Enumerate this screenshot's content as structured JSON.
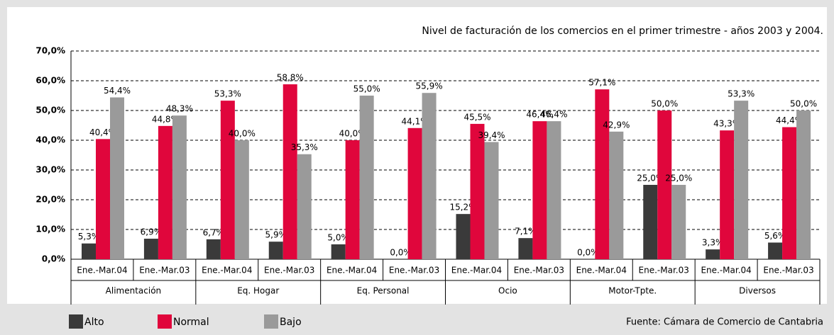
{
  "chart_data": {
    "type": "bar",
    "title": "Nivel de facturación de los comercios en el primer trimestre - años 2003 y 2004.",
    "source": "Fuente: Cámara de Comercio de Cantabria",
    "categories": [
      "Ene.-Mar.04",
      "Ene.-Mar.03",
      "Ene.-Mar.04",
      "Ene.-Mar.03",
      "Ene.-Mar.04",
      "Ene.-Mar.03",
      "Ene.-Mar.04",
      "Ene.-Mar.03",
      "Ene.-Mar.04",
      "Ene.-Mar.03",
      "Ene.-Mar.04",
      "Ene.-Mar.03"
    ],
    "groups": [
      "Alimentación",
      "Eq. Hogar",
      "Eq. Personal",
      "Ocio",
      "Motor-Tpte.",
      "Diversos"
    ],
    "series": [
      {
        "name": "Alto",
        "color": "#3a3a3a",
        "values": [
          5.3,
          6.9,
          6.7,
          5.9,
          5.0,
          0.0,
          15.2,
          7.1,
          0.0,
          25.0,
          3.3,
          5.6
        ],
        "value_labels": [
          "5,3%",
          "6,9%",
          "6,7%",
          "5,9%",
          "5,0%",
          "0,0%",
          "15,2%",
          "7,1%",
          "0,0%",
          "25,0%",
          "3,3%",
          "5,6%"
        ]
      },
      {
        "name": "Normal",
        "color": "#e0063c",
        "values": [
          40.4,
          44.8,
          53.3,
          58.8,
          40.0,
          44.1,
          45.5,
          46.4,
          57.1,
          50.0,
          43.3,
          44.4
        ],
        "value_labels": [
          "40,4%",
          "44,8%",
          "53,3%",
          "58,8%",
          "40,0%",
          "44,1%",
          "45,5%",
          "46,4%",
          "57,1%",
          "50,0%",
          "43,3%",
          "44,4%"
        ]
      },
      {
        "name": "Bajo",
        "color": "#9a9a9a",
        "values": [
          54.4,
          48.3,
          40.0,
          35.3,
          55.0,
          55.9,
          39.4,
          46.4,
          42.9,
          25.0,
          53.3,
          50.0
        ],
        "value_labels": [
          "54,4%",
          "48,3%",
          "40,0%",
          "35,3%",
          "55,0%",
          "55,9%",
          "39,4%",
          "46,4%",
          "42,9%",
          "25,0%",
          "53,3%",
          "50,0%"
        ]
      }
    ],
    "ylim": [
      0,
      70
    ],
    "yticks": [
      {
        "value": 0,
        "label": "0,0%"
      },
      {
        "value": 10,
        "label": "10,0%"
      },
      {
        "value": 20,
        "label": "20,0%"
      },
      {
        "value": 30,
        "label": "30,0%"
      },
      {
        "value": 40,
        "label": "40,0%"
      },
      {
        "value": 50,
        "label": "50,0%"
      },
      {
        "value": 60,
        "label": "60,0%"
      },
      {
        "value": 70,
        "label": "70,0%"
      }
    ],
    "grid": true,
    "legend": "bottom"
  }
}
